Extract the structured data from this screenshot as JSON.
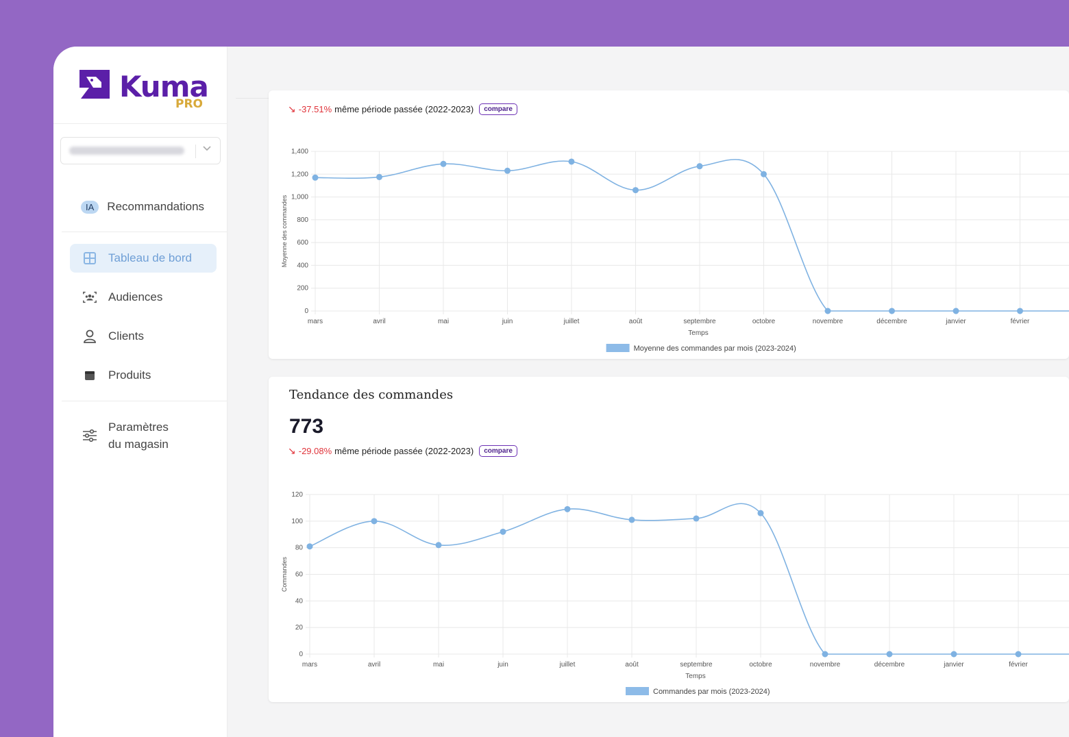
{
  "brand": {
    "name": "Kuma",
    "tier": "PRO"
  },
  "store_select": {
    "chevron": "chevron-down-icon"
  },
  "nav": {
    "recommendations": {
      "badge": "IA",
      "label": "Recommandations"
    },
    "items": [
      {
        "label": "Tableau de bord",
        "icon": "grid-icon",
        "active": true
      },
      {
        "label": "Audiences",
        "icon": "audience-icon",
        "active": false
      },
      {
        "label": "Clients",
        "icon": "user-icon",
        "active": false
      },
      {
        "label": "Produits",
        "icon": "box-icon",
        "active": false
      }
    ],
    "settings": {
      "line1": "Paramètres",
      "line2": "du magasin",
      "icon": "sliders-icon"
    }
  },
  "colors": {
    "brand_purple": "#5b1fa8",
    "accent_gold": "#d8a93a",
    "line": "#7fb2e2",
    "negative": "#e0333a",
    "page_bg": "#9367c4"
  },
  "card1": {
    "trend": {
      "pct": "-37.51%",
      "text": "même période passée (2022-2023)",
      "compare": "compare"
    }
  },
  "card2": {
    "title": "Tendance des commandes",
    "value": "773",
    "trend": {
      "pct": "-29.08%",
      "text": "même période passée (2022-2023)",
      "compare": "compare"
    }
  },
  "chart_data": [
    {
      "type": "line",
      "categories": [
        "mars",
        "avril",
        "mai",
        "juin",
        "juillet",
        "août",
        "septembre",
        "octobre",
        "novembre",
        "décembre",
        "janvier",
        "février"
      ],
      "series": [
        {
          "name": "Moyenne des commandes par mois (2023-2024)",
          "values": [
            1170,
            1175,
            1290,
            1230,
            1310,
            1060,
            1270,
            1200,
            0,
            0,
            0,
            0
          ]
        }
      ],
      "xlabel": "Temps",
      "ylabel": "Moyenne des commandes",
      "ylim": [
        0,
        1400
      ],
      "yticks": [
        "0",
        "200",
        "400",
        "600",
        "800",
        "1,000",
        "1,200",
        "1,400"
      ],
      "grid": true,
      "legend": "bottom"
    },
    {
      "type": "line",
      "categories": [
        "mars",
        "avril",
        "mai",
        "juin",
        "juillet",
        "août",
        "septembre",
        "octobre",
        "novembre",
        "décembre",
        "janvier",
        "février"
      ],
      "series": [
        {
          "name": "Commandes par mois (2023-2024)",
          "values": [
            81,
            100,
            82,
            92,
            109,
            101,
            102,
            106,
            0,
            0,
            0,
            0
          ]
        }
      ],
      "xlabel": "Temps",
      "ylabel": "Commandes",
      "ylim": [
        0,
        120
      ],
      "yticks": [
        "0",
        "20",
        "40",
        "60",
        "80",
        "100",
        "120"
      ],
      "grid": true,
      "legend": "bottom"
    }
  ]
}
